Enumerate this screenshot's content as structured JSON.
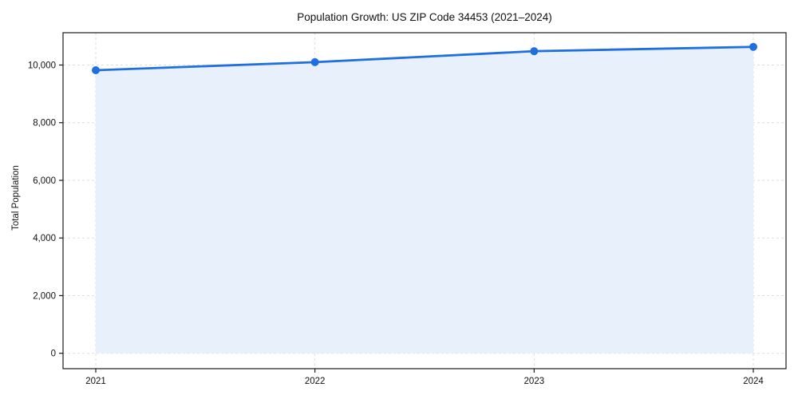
{
  "chart_data": {
    "type": "area",
    "title": "Population Growth: US ZIP Code 34453 (2021–2024)",
    "xlabel": "",
    "ylabel": "Total Population",
    "categories": [
      "2021",
      "2022",
      "2023",
      "2024"
    ],
    "series": [
      {
        "name": "Total Population",
        "values": [
          9820,
          10100,
          10480,
          10630
        ]
      }
    ],
    "yticks": [
      0,
      2000,
      4000,
      6000,
      8000,
      10000
    ],
    "ytick_labels": [
      "0",
      "2,000",
      "4,000",
      "6,000",
      "8,000",
      "10,000"
    ],
    "xtick_labels": [
      "2021",
      "2022",
      "2023",
      "2024"
    ],
    "ylim": [
      -530,
      11130
    ],
    "grid": true,
    "grid_style": "dashed",
    "legend_position": "none",
    "marker": "circle",
    "colors": {
      "line": "#1f6fe0",
      "marker": "#1f6fe0",
      "fill": "#e8f0fc",
      "grid": "#dedede",
      "spine": "#1a1a1a",
      "text": "#111111",
      "background": "#ffffff"
    }
  }
}
